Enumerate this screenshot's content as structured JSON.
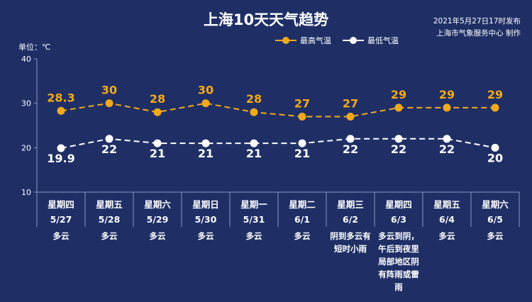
{
  "header": {
    "title": "上海10天天气趋势",
    "publish_line1": "2021年5月27日17时发布",
    "publish_line2": "上海市气象服务中心 制作"
  },
  "unit_label": "单位：℃",
  "colors": {
    "background": "#1f2f66",
    "high": "#f2a91b",
    "low": "#ffffff"
  },
  "chart_data": {
    "type": "line",
    "ylim": [
      10,
      40
    ],
    "yticks": [
      10,
      20,
      30,
      40
    ],
    "grid": false,
    "legend_position": "top-right",
    "categories": [
      "星期四 5/27",
      "星期五 5/28",
      "星期六 5/29",
      "星期日 5/30",
      "星期一 5/31",
      "星期二 6/1",
      "星期三 6/2",
      "星期四 6/3",
      "星期五 6/4",
      "星期六 6/5"
    ],
    "weekdays": [
      "星期四",
      "星期五",
      "星期六",
      "星期日",
      "星期一",
      "星期二",
      "星期三",
      "星期四",
      "星期五",
      "星期六"
    ],
    "dates": [
      "5/27",
      "5/28",
      "5/29",
      "5/30",
      "5/31",
      "6/1",
      "6/2",
      "6/3",
      "6/4",
      "6/5"
    ],
    "series": [
      {
        "name": "最高气温",
        "values": [
          28.3,
          30,
          28,
          30,
          28,
          27,
          27,
          29,
          29,
          29
        ],
        "labels": [
          "28.3",
          "30",
          "28",
          "30",
          "28",
          "27",
          "27",
          "29",
          "29",
          "29"
        ]
      },
      {
        "name": "最低气温",
        "values": [
          19.9,
          22,
          21,
          21,
          21,
          21,
          22,
          22,
          22,
          20
        ],
        "labels": [
          "19.9",
          "22",
          "21",
          "21",
          "21",
          "21",
          "22",
          "22",
          "22",
          "20"
        ]
      }
    ],
    "weather": [
      [
        "多云"
      ],
      [
        "多云"
      ],
      [
        "多云"
      ],
      [
        "多云"
      ],
      [
        "多云"
      ],
      [
        "多云"
      ],
      [
        "阴到多云有",
        "短时小雨"
      ],
      [
        "多云到阴，",
        "午后到夜里",
        "局部地区阴",
        "有阵雨或雷",
        "雨"
      ],
      [
        "多云"
      ],
      [
        "多云"
      ]
    ]
  }
}
